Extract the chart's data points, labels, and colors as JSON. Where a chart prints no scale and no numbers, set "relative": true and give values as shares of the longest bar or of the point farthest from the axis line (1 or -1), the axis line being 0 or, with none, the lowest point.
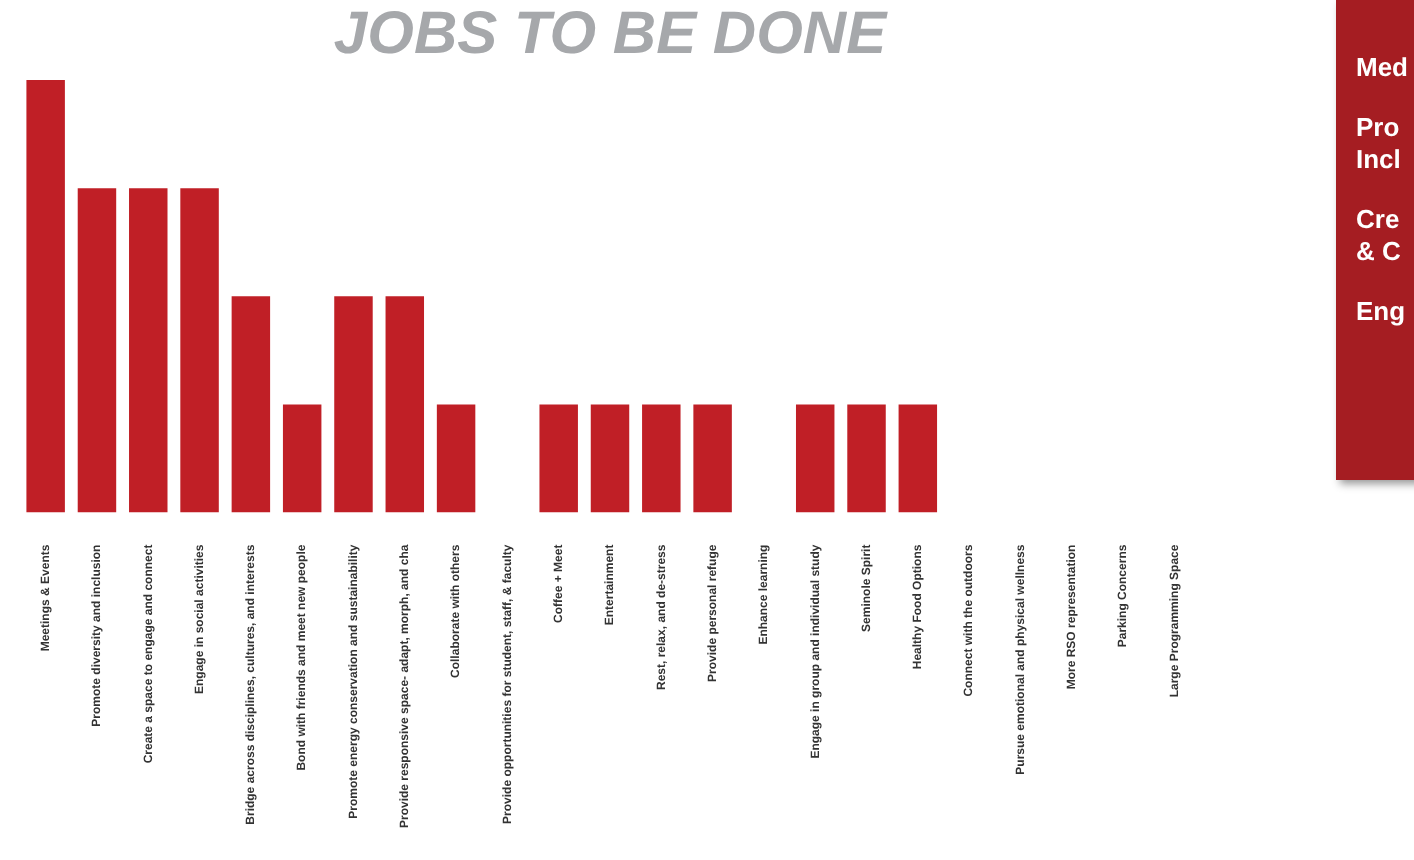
{
  "chart_data": {
    "type": "bar",
    "title": "JOBS TO BE DONE",
    "relative": true,
    "color": "#c01f26",
    "grid": false,
    "legend": false,
    "categories": [
      "Meetings & Events",
      "Promote diversity and inclusion",
      "Create a space to engage and connect",
      "Engage in social activities",
      "Bridge across disciplines, cultures, and interests",
      "Bond with friends and meet new people",
      "Promote energy conservation and sustainability",
      "Provide responsive space- adapt, morph, and cha",
      "Collaborate with others",
      "Provide opportunities for student, staff, & faculty",
      "Coffee + Meet",
      "Entertainment",
      "Rest, relax, and de-stress",
      "Provide personal refuge",
      "Enhance learning",
      "Engage in group and individual study",
      "Seminole Spirit",
      "Healthy Food Options",
      "Connect with the outdoors",
      "Pursue emotional and physical wellness",
      "More RSO representation",
      "Parking Concerns",
      "Large Programming Space"
    ],
    "values": [
      1,
      0.75,
      0.75,
      0.75,
      0.5,
      0.25,
      0.5,
      0.5,
      0.25,
      0,
      0.25,
      0.25,
      0.25,
      0.25,
      0,
      0.25,
      0.25,
      0.25,
      0,
      0,
      0,
      0,
      0
    ],
    "annotations": [
      "Med",
      "Pro Incl",
      "Cre & C",
      "Eng"
    ]
  }
}
